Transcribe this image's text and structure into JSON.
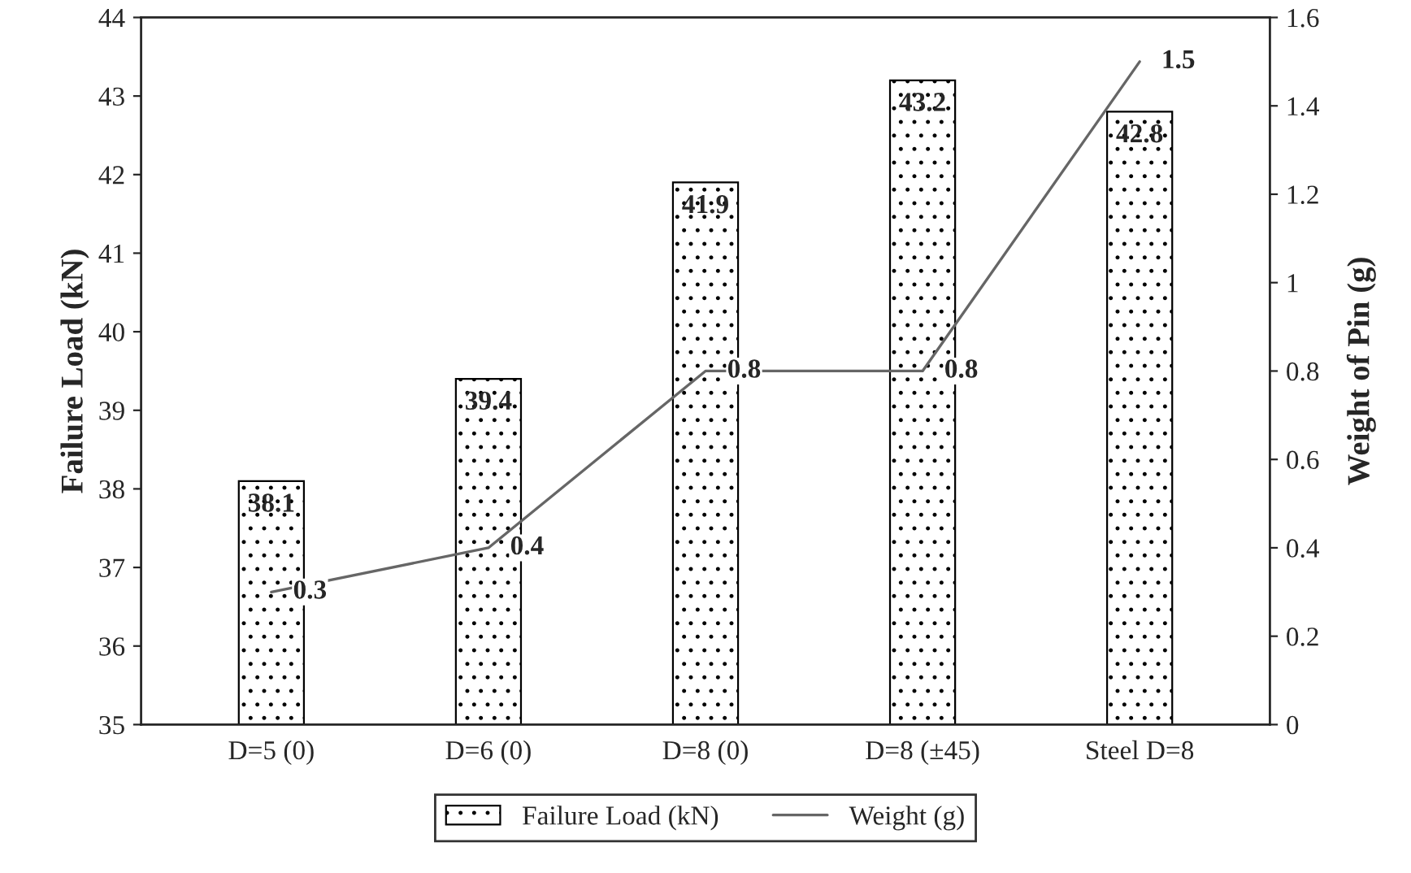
{
  "chart_data": {
    "type": "bar",
    "categories": [
      "D=5 (0)",
      "D=6 (0)",
      "D=8 (0)",
      "D=8 (±45)",
      "Steel D=8"
    ],
    "series": [
      {
        "name": "Failure Load (kN)",
        "color": "#000000",
        "values": [
          38.1,
          39.4,
          41.9,
          43.2,
          42.8
        ]
      },
      {
        "name": "Weight (g)",
        "type": "line",
        "axis": "y2",
        "color": "#666666",
        "values": [
          0.3,
          0.4,
          0.8,
          0.8,
          1.5
        ]
      }
    ],
    "ylabel": "Failure Load (kN)",
    "y2label": "Weight of Pin (g)",
    "ylim": [
      35,
      44
    ],
    "yticks": [
      35,
      36,
      37,
      38,
      39,
      40,
      41,
      42,
      43,
      44
    ],
    "y2lim": [
      0,
      1.6
    ],
    "y2ticks": [
      0,
      0.2,
      0.4,
      0.6,
      0.8,
      1,
      1.2,
      1.4,
      1.6
    ],
    "data_labels": true,
    "legend": "bottom",
    "grid": false,
    "marker": "none",
    "line_style": "solid"
  }
}
